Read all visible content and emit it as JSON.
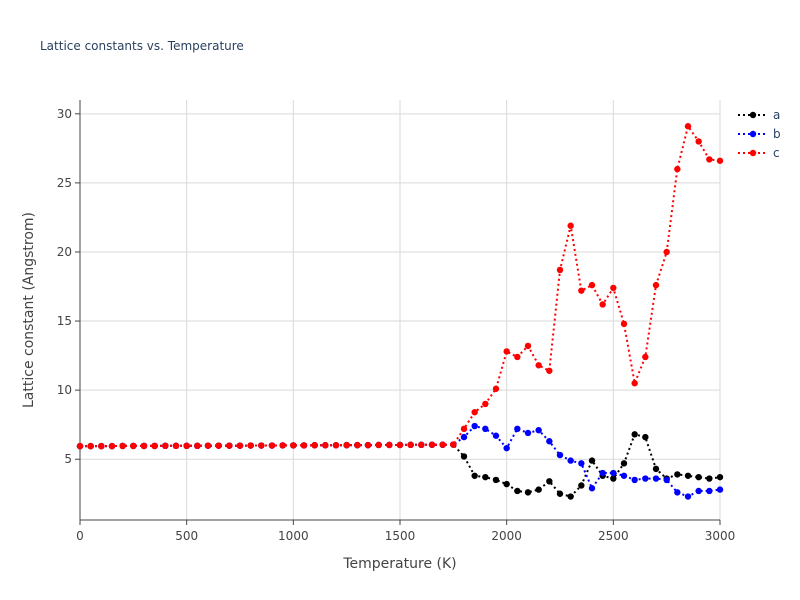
{
  "chart_data": {
    "type": "line",
    "title": "Lattice constants vs. Temperature",
    "xlabel": "Temperature (K)",
    "ylabel": "Lattice constant (Angstrom)",
    "xlim": [
      0,
      3000
    ],
    "ylim": [
      0.6,
      31
    ],
    "xticks": [
      0,
      500,
      1000,
      1500,
      2000,
      2500,
      3000
    ],
    "yticks": [
      5,
      10,
      15,
      20,
      25,
      30
    ],
    "grid": true,
    "legend_position": "top-right",
    "x": [
      0,
      50,
      100,
      150,
      200,
      250,
      300,
      350,
      400,
      450,
      500,
      550,
      600,
      650,
      700,
      750,
      800,
      850,
      900,
      950,
      1000,
      1050,
      1100,
      1150,
      1200,
      1250,
      1300,
      1350,
      1400,
      1450,
      1500,
      1550,
      1600,
      1650,
      1700,
      1750,
      1800,
      1850,
      1900,
      1950,
      2000,
      2050,
      2100,
      2150,
      2200,
      2250,
      2300,
      2350,
      2400,
      2450,
      2500,
      2550,
      2600,
      2650,
      2700,
      2750,
      2800,
      2850,
      2900,
      2950,
      3000
    ],
    "series": [
      {
        "name": "a",
        "color": "#000000",
        "values": [
          5.95,
          5.95,
          5.95,
          5.95,
          5.96,
          5.96,
          5.96,
          5.96,
          5.97,
          5.97,
          5.97,
          5.97,
          5.98,
          5.98,
          5.98,
          5.98,
          5.99,
          5.99,
          5.99,
          6.0,
          6.0,
          6.0,
          6.01,
          6.01,
          6.01,
          6.02,
          6.02,
          6.02,
          6.03,
          6.03,
          6.03,
          6.04,
          6.04,
          6.05,
          6.05,
          6.06,
          5.2,
          3.8,
          3.7,
          3.5,
          3.2,
          2.7,
          2.6,
          2.8,
          3.4,
          2.5,
          2.3,
          3.1,
          4.9,
          3.8,
          3.6,
          4.7,
          6.8,
          6.6,
          4.3,
          3.6,
          3.9,
          3.8,
          3.7,
          3.6,
          3.7
        ]
      },
      {
        "name": "b",
        "color": "#0000ff",
        "values": [
          5.95,
          5.95,
          5.95,
          5.95,
          5.96,
          5.96,
          5.96,
          5.96,
          5.97,
          5.97,
          5.97,
          5.97,
          5.98,
          5.98,
          5.98,
          5.98,
          5.99,
          5.99,
          5.99,
          6.0,
          6.0,
          6.0,
          6.01,
          6.01,
          6.01,
          6.02,
          6.02,
          6.02,
          6.03,
          6.03,
          6.03,
          6.04,
          6.04,
          6.05,
          6.05,
          6.06,
          6.6,
          7.4,
          7.2,
          6.7,
          5.8,
          7.2,
          6.9,
          7.1,
          6.3,
          5.3,
          4.9,
          4.7,
          2.9,
          4.0,
          4.0,
          3.8,
          3.5,
          3.6,
          3.6,
          3.5,
          2.6,
          2.3,
          2.7,
          2.7,
          2.8
        ]
      },
      {
        "name": "c",
        "color": "#ff0000",
        "values": [
          5.95,
          5.95,
          5.95,
          5.95,
          5.96,
          5.96,
          5.96,
          5.96,
          5.97,
          5.97,
          5.97,
          5.97,
          5.98,
          5.98,
          5.98,
          5.98,
          5.99,
          5.99,
          5.99,
          6.0,
          6.0,
          6.0,
          6.01,
          6.01,
          6.01,
          6.02,
          6.02,
          6.02,
          6.03,
          6.03,
          6.03,
          6.04,
          6.04,
          6.05,
          6.05,
          6.06,
          7.2,
          8.4,
          9.0,
          10.1,
          12.8,
          12.4,
          13.2,
          11.8,
          11.4,
          18.7,
          21.9,
          17.2,
          17.6,
          16.2,
          17.4,
          14.8,
          10.5,
          12.4,
          17.6,
          20.0,
          26.0,
          29.1,
          28.0,
          26.7,
          26.6
        ]
      }
    ]
  }
}
